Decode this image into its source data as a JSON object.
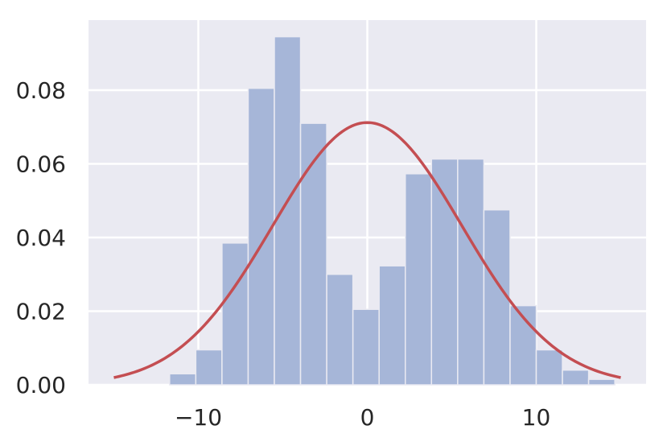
{
  "chart_data": {
    "type": "bar",
    "title": "",
    "xlabel": "",
    "ylabel": "",
    "xlim": [
      -16.5,
      16.5
    ],
    "ylim": [
      0,
      0.099
    ],
    "grid": true,
    "x_ticks": [
      -10,
      0,
      10
    ],
    "x_tick_labels": [
      "−10",
      "0",
      "10"
    ],
    "y_ticks": [
      0.0,
      0.02,
      0.04,
      0.06,
      0.08
    ],
    "y_tick_labels": [
      "0.00",
      "0.02",
      "0.04",
      "0.06",
      "0.08"
    ],
    "histogram": {
      "bin_edges": [
        -11.7,
        -10.15,
        -8.6,
        -7.05,
        -5.5,
        -3.95,
        -2.4,
        -0.85,
        0.7,
        2.25,
        3.8,
        5.35,
        6.9,
        8.45,
        10.0,
        11.55,
        13.1,
        14.65
      ],
      "densities": [
        0.003,
        0.0095,
        0.0385,
        0.0805,
        0.0945,
        0.071,
        0.03,
        0.0205,
        0.0323,
        0.0573,
        0.0613,
        0.0613,
        0.0475,
        0.0215,
        0.0095,
        0.004,
        0.0015
      ]
    },
    "curve": {
      "x_range": [
        -15,
        15
      ],
      "mean": 0,
      "std": 5.6,
      "peak": 0.0712
    },
    "colors": {
      "bars": "#a6b6d8",
      "bar_edge": "#eaeaf2",
      "curve": "#c44e52",
      "plot_bg": "#eaeaf2",
      "grid": "#ffffff"
    }
  }
}
